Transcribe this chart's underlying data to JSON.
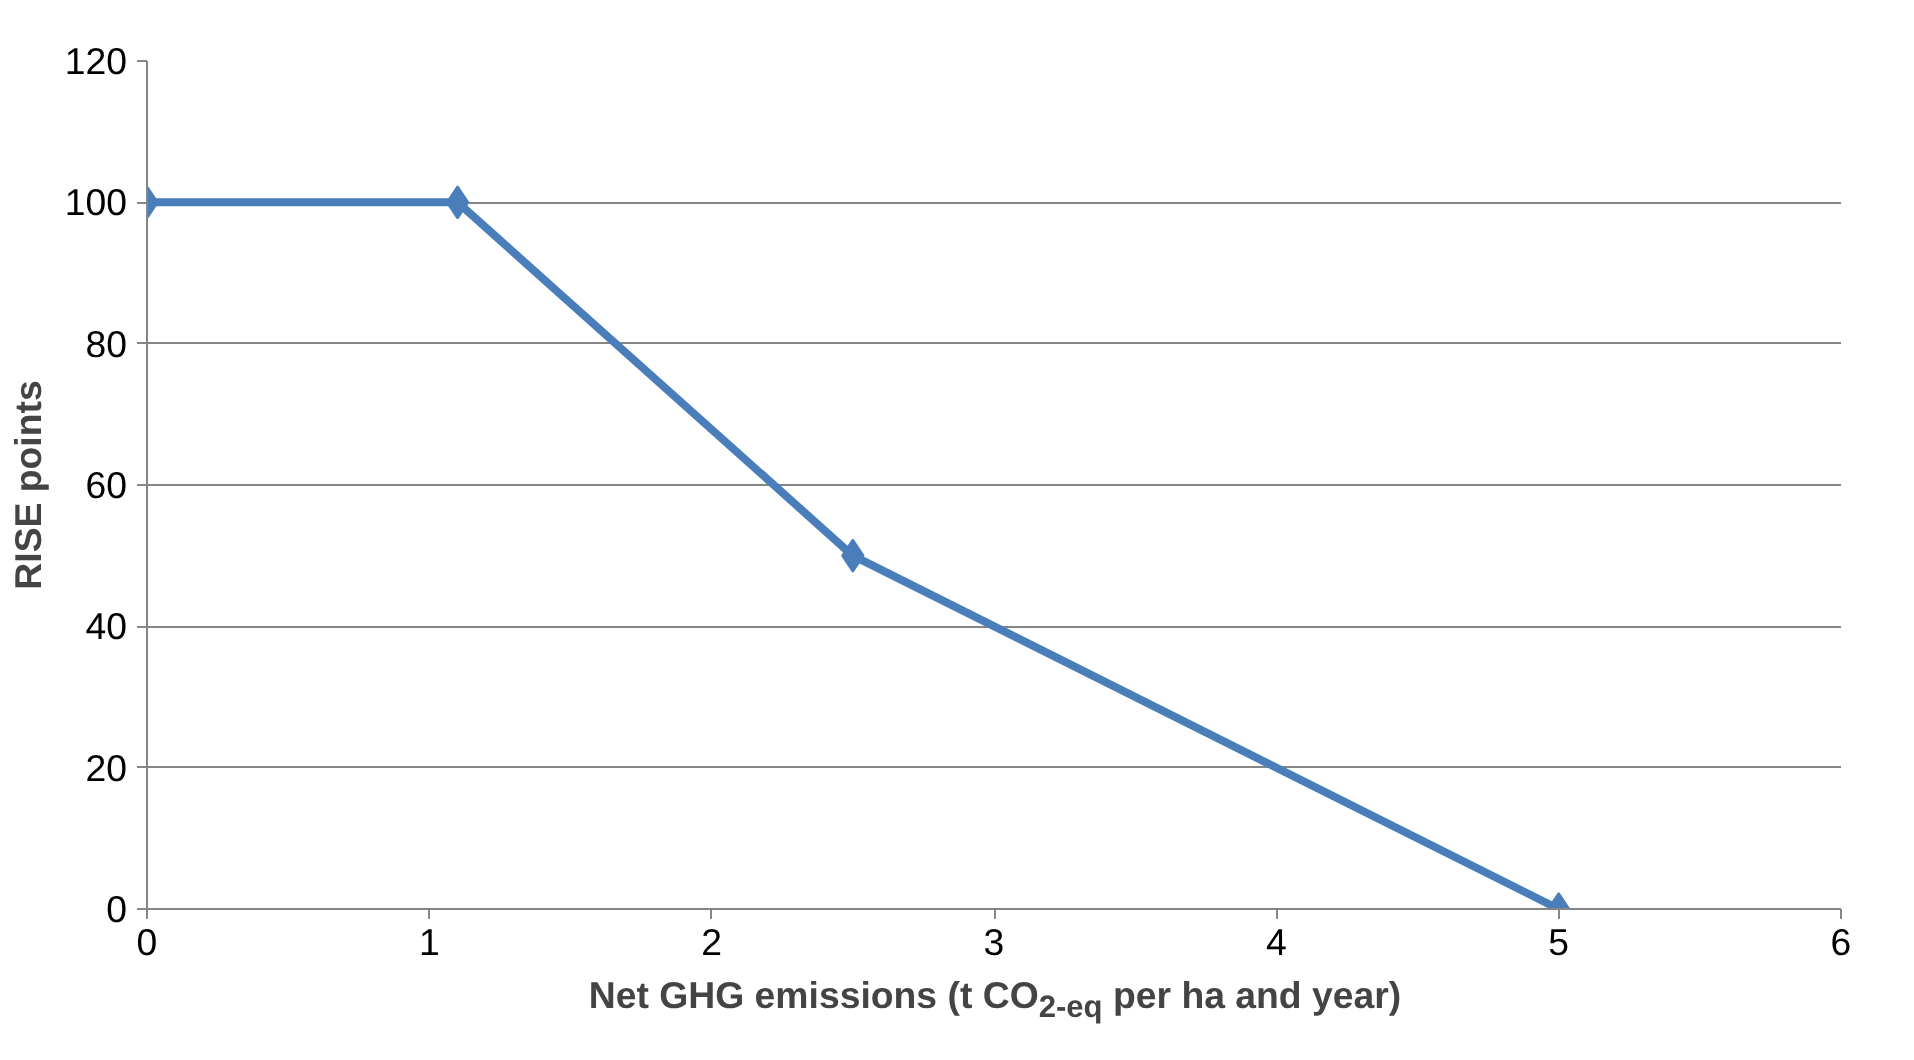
{
  "chart_data": {
    "type": "line",
    "xlabel": "Net GHG emissions (t CO$_{2-eq}$ per ha and year)",
    "ylabel": "RISE points",
    "x": [
      0,
      1.1,
      2.5,
      5
    ],
    "series": [
      {
        "color": "#4a7ebb",
        "values": [
          100,
          100,
          50,
          0
        ]
      }
    ],
    "xlim": [
      0,
      6
    ],
    "xticks": [
      0,
      1,
      2,
      3,
      4,
      5,
      6
    ],
    "ylim": [
      0,
      120
    ],
    "yticks": [
      0,
      20,
      40,
      60,
      80,
      100,
      120
    ],
    "grid": "y",
    "marker": "diamond",
    "line_style": "solid"
  }
}
